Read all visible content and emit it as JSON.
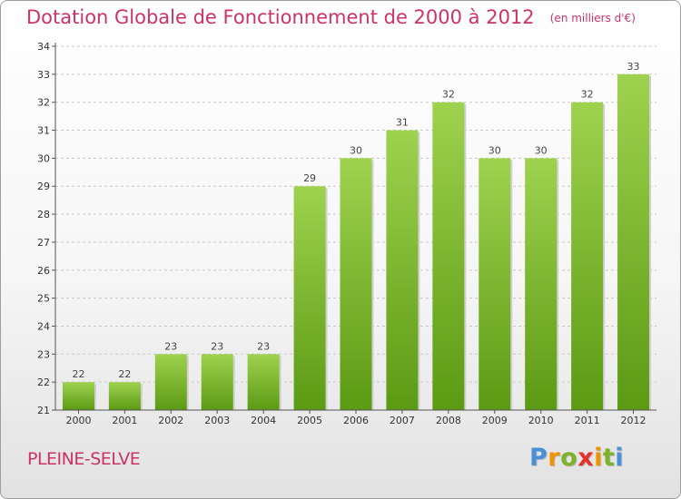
{
  "header": {
    "title": "Dotation Globale de Fonctionnement de 2000 à 2012",
    "unit": "(en milliers d'€)"
  },
  "footer": {
    "commune": "PLEINE-SELVE",
    "logo_letters": [
      "P",
      "r",
      "o",
      "x",
      "i",
      "t",
      "i"
    ],
    "logo_colors": [
      "#4a90d9",
      "#f29400",
      "#7cb32b",
      "#e6332a",
      "#f29400",
      "#7cb32b",
      "#4a90d9"
    ]
  },
  "colors": {
    "accent": "#cc3366",
    "bar_top": "#9ed24f",
    "bar_bottom": "#5c9a14",
    "axis": "#555555",
    "grid": "#c8c8c8"
  },
  "chart_data": {
    "type": "bar",
    "title": "Dotation Globale de Fonctionnement de 2000 à 2012",
    "subtitle": "(en milliers d'€)",
    "xlabel": "",
    "ylabel": "",
    "categories": [
      "2000",
      "2001",
      "2002",
      "2003",
      "2004",
      "2005",
      "2006",
      "2007",
      "2008",
      "2009",
      "2010",
      "2011",
      "2012"
    ],
    "values": [
      22,
      22,
      23,
      23,
      23,
      29,
      30,
      31,
      32,
      30,
      30,
      32,
      33
    ],
    "ylim": [
      21,
      34
    ],
    "yticks": [
      21,
      22,
      23,
      24,
      25,
      26,
      27,
      28,
      29,
      30,
      31,
      32,
      33,
      34
    ],
    "grid": "y-dashed",
    "legend": "none"
  }
}
